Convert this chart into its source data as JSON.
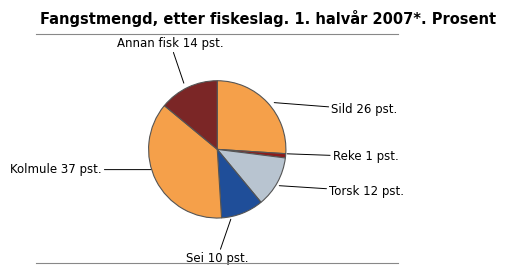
{
  "title": "Fangstmengd, etter fiskeslag. 1. halvår 2007*. Prosent",
  "slices": [
    {
      "label": "Sild 26 pst.",
      "value": 26,
      "color": "#F5A04A"
    },
    {
      "label": "Reke 1 pst.",
      "value": 1,
      "color": "#8B1C1C"
    },
    {
      "label": "Torsk 12 pst.",
      "value": 12,
      "color": "#B8C4D0"
    },
    {
      "label": "Sei 10 pst.",
      "value": 10,
      "color": "#1F4E99"
    },
    {
      "label": "Kolmule 37 pst.",
      "value": 37,
      "color": "#F5A04A"
    },
    {
      "label": "Annan fisk 14 pst.",
      "value": 14,
      "color": "#7B2626"
    }
  ],
  "background_color": "#FFFFFF",
  "title_fontsize": 10.5,
  "label_fontsize": 8.5,
  "pie_edge_color": "#555555",
  "pie_edge_width": 0.8
}
